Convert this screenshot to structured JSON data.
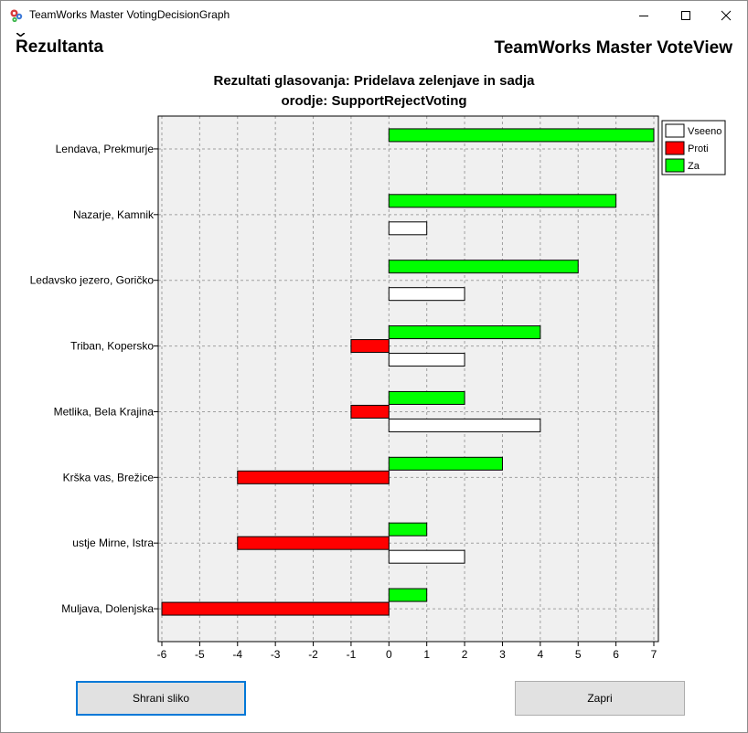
{
  "window": {
    "title": "TeamWorks Master VotingDecisionGraph"
  },
  "header": {
    "brand_first": "R",
    "brand_rest": "ezultanta",
    "product": "TeamWorks Master VoteView"
  },
  "chart_data": {
    "type": "bar",
    "orientation": "horizontal",
    "title_line1": "Rezultati glasovanja: Pridelava zelenjave in sadja",
    "title_line2": "orodje: SupportRejectVoting",
    "categories": [
      "Lendava, Prekmurje",
      "Nazarje, Kamnik",
      "Ledavsko jezero, Goričko",
      "Triban, Kopersko",
      "Metlika, Bela Krajina",
      "Krška vas, Brežice",
      "ustje Mirne, Istra",
      "Muljava, Dolenjska"
    ],
    "series": [
      {
        "name": "Za",
        "color": "#00ff00",
        "values": [
          7,
          6,
          5,
          4,
          2,
          3,
          1,
          1
        ]
      },
      {
        "name": "Proti",
        "color": "#ff0000",
        "values": [
          0,
          0,
          0,
          -1,
          -1,
          -4,
          -4,
          -6
        ]
      },
      {
        "name": "Vseeno",
        "color": "#ffffff",
        "values": [
          0,
          1,
          2,
          2,
          4,
          0,
          2,
          0
        ]
      }
    ],
    "legend": [
      "Vseeno",
      "Proti",
      "Za"
    ],
    "legend_position": "top-right",
    "xlim": [
      -6,
      7
    ],
    "xticks": [
      "-6",
      "-5",
      "-4",
      "-3",
      "-2",
      "-1",
      "0",
      "1",
      "2",
      "3",
      "4",
      "5",
      "6",
      "7"
    ],
    "grid": true,
    "plot_background": "#f0f0f0"
  },
  "buttons": {
    "save": "Shrani sliko",
    "close": "Zapri"
  }
}
